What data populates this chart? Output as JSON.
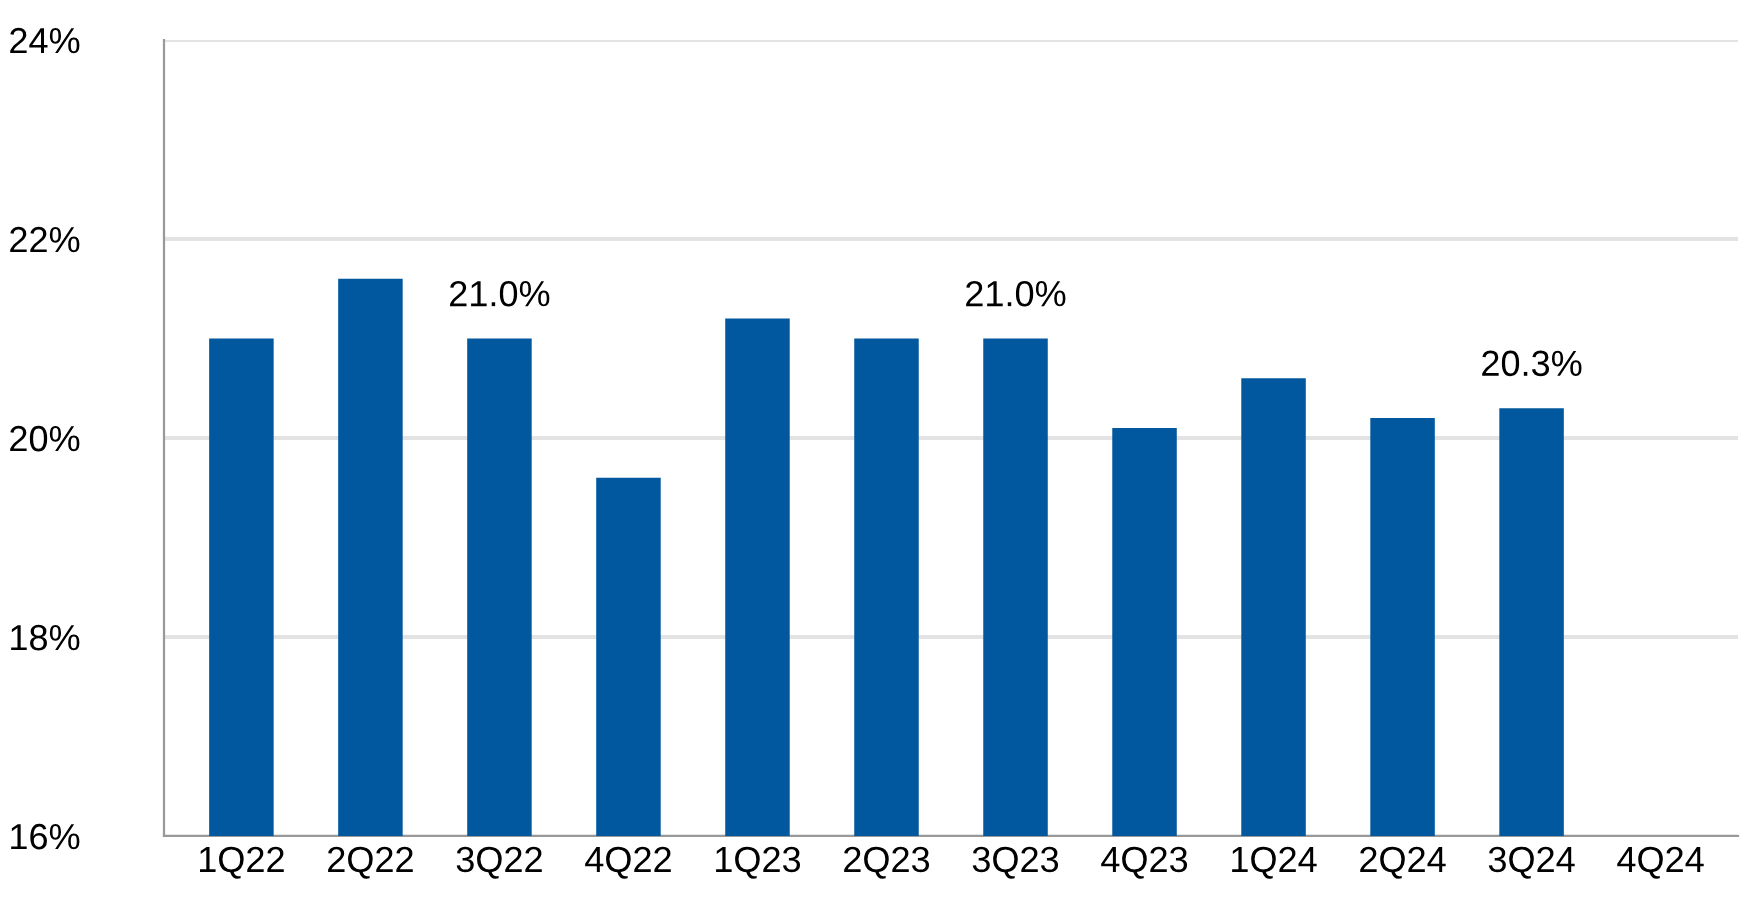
{
  "chart_data": {
    "type": "bar",
    "categories": [
      "1Q22",
      "2Q22",
      "3Q22",
      "4Q22",
      "1Q23",
      "2Q23",
      "3Q23",
      "4Q23",
      "1Q24",
      "2Q24",
      "3Q24",
      "4Q24"
    ],
    "values": [
      21.0,
      21.6,
      21.0,
      19.6,
      21.2,
      21.0,
      21.0,
      20.1,
      20.6,
      20.2,
      20.3,
      null
    ],
    "value_labels": [
      null,
      null,
      "21.0%",
      null,
      null,
      null,
      "21.0%",
      null,
      null,
      null,
      "20.3%",
      null
    ],
    "color": "#02589e",
    "ylim": [
      16,
      24
    ],
    "yticks": [
      {
        "value": 16,
        "label": "16%"
      },
      {
        "value": 18,
        "label": "18%"
      },
      {
        "value": 20,
        "label": "20%"
      },
      {
        "value": 22,
        "label": "22%"
      },
      {
        "value": 24,
        "label": "24%"
      }
    ],
    "grid": "y",
    "legend": false
  }
}
